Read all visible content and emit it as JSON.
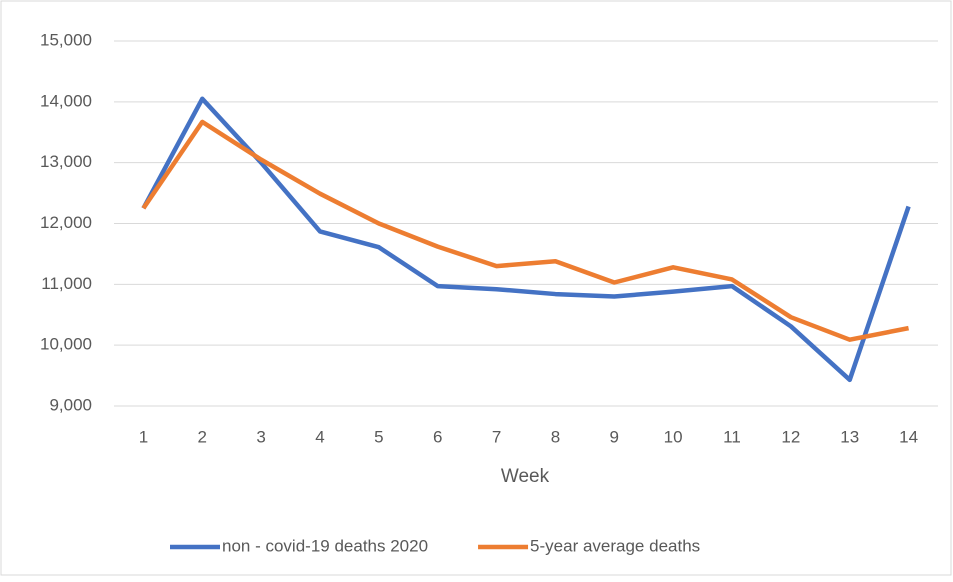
{
  "chart_data": {
    "type": "line",
    "x_label": "Week",
    "categories": [
      1,
      2,
      3,
      4,
      5,
      6,
      7,
      8,
      9,
      10,
      11,
      12,
      13,
      14
    ],
    "series": [
      {
        "name": "non - covid-19 deaths 2020",
        "color": "#4472c4",
        "values": [
          12250,
          14050,
          13000,
          11870,
          11610,
          10970,
          10920,
          10840,
          10800,
          10880,
          10970,
          10310,
          9430,
          12280
        ]
      },
      {
        "name": "5-year average deaths",
        "color": "#ed7d31",
        "values": [
          12250,
          13670,
          13050,
          12490,
          12000,
          11620,
          11300,
          11380,
          11030,
          11280,
          11080,
          10460,
          10090,
          10280
        ]
      }
    ],
    "ylim": [
      9000,
      15000
    ],
    "yticks": [
      {
        "value": 9000,
        "label": "9,000"
      },
      {
        "value": 10000,
        "label": "10,000"
      },
      {
        "value": 11000,
        "label": "11,000"
      },
      {
        "value": 12000,
        "label": "12,000"
      },
      {
        "value": 13000,
        "label": "13,000"
      },
      {
        "value": 14000,
        "label": "14,000"
      },
      {
        "value": 15000,
        "label": "15,000"
      }
    ],
    "grid": true,
    "legend": "bottom"
  }
}
